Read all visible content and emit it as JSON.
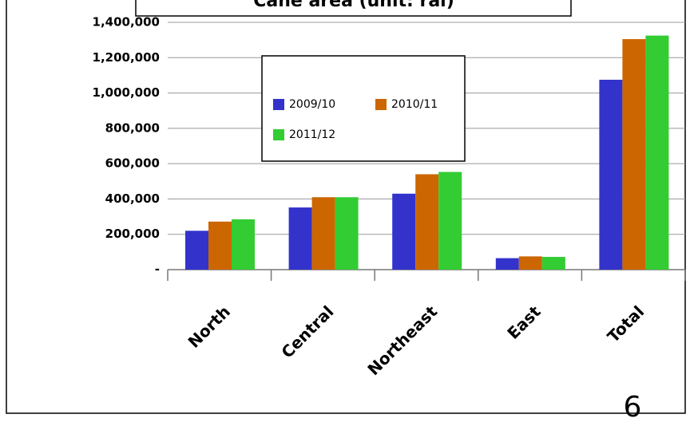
{
  "chart_data": {
    "type": "bar",
    "title": "Cane area (unit: rai)",
    "categories": [
      "North",
      "Central",
      "Northeast",
      "East",
      "Total"
    ],
    "series": [
      {
        "name": "2009/10",
        "color": "#3333cc",
        "values": [
          220000,
          352000,
          430000,
          65000,
          1075000
        ]
      },
      {
        "name": "2010/11",
        "color": "#cc6600",
        "values": [
          272000,
          410000,
          540000,
          75000,
          1305000
        ]
      },
      {
        "name": "2011/12",
        "color": "#33cc33",
        "values": [
          285000,
          410000,
          553000,
          72000,
          1325000
        ]
      }
    ],
    "ylim": [
      0,
      1400000
    ],
    "yticks": [
      {
        "value": 0,
        "label": "-"
      },
      {
        "value": 200000,
        "label": "200,000"
      },
      {
        "value": 400000,
        "label": "400,000"
      },
      {
        "value": 600000,
        "label": "600,000"
      },
      {
        "value": 800000,
        "label": "800,000"
      },
      {
        "value": 1000000,
        "label": "1,000,000"
      },
      {
        "value": 1200000,
        "label": "1,200,000"
      },
      {
        "value": 1400000,
        "label": "1,400,000"
      }
    ],
    "grid": true,
    "legend": "upper center",
    "page_number": "6"
  }
}
